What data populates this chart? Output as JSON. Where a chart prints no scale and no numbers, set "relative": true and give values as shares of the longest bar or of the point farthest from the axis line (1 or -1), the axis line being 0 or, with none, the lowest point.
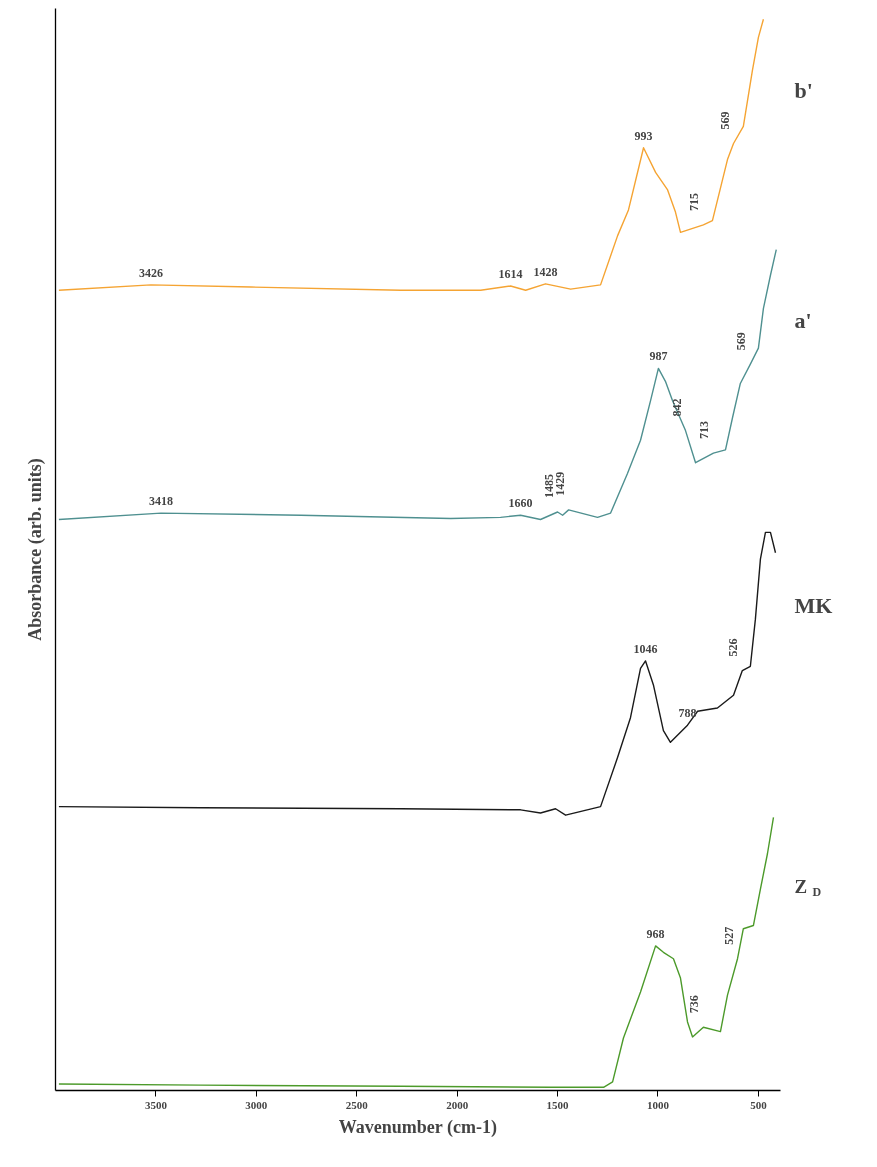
{
  "chart_data": {
    "type": "line",
    "relative": true,
    "xlabel": "Wavenumber (cm-1)",
    "ylabel": "Absorbance (arb. units)",
    "xlim": [
      4000,
      390
    ],
    "xticks": [
      3500,
      3000,
      2500,
      2000,
      1500,
      1000,
      500
    ],
    "tick_labels": "x",
    "grid": false,
    "legend": false,
    "marker": "none",
    "line_style": "solid",
    "series": [
      {
        "name": "b'",
        "color": "#f5a433",
        "x": [
          3983,
          3525,
          3027,
          2281,
          1883,
          1734,
          1659,
          1560,
          1435,
          1286,
          1201,
          1147,
          1072,
          1012,
          953,
          913,
          888,
          774,
          729,
          654,
          624,
          575,
          530,
          500,
          475
        ],
        "values": [
          0.747,
          0.752,
          0.75,
          0.747,
          0.747,
          0.751,
          0.747,
          0.753,
          0.748,
          0.752,
          0.798,
          0.822,
          0.88,
          0.857,
          0.841,
          0.82,
          0.801,
          0.808,
          0.812,
          0.869,
          0.884,
          0.9,
          0.952,
          0.983,
          1.0
        ]
      },
      {
        "name": "a'",
        "color": "#4f9090",
        "x": [
          3983,
          3475,
          2779,
          2032,
          1784,
          1684,
          1585,
          1500,
          1475,
          1445,
          1301,
          1236,
          1152,
          1087,
          1037,
          998,
          963,
          928,
          863,
          813,
          724,
          664,
          629,
          590,
          540,
          500,
          475,
          440,
          411
        ],
        "values": [
          0.533,
          0.539,
          0.537,
          0.534,
          0.535,
          0.537,
          0.533,
          0.54,
          0.537,
          0.542,
          0.535,
          0.539,
          0.576,
          0.607,
          0.644,
          0.674,
          0.662,
          0.644,
          0.616,
          0.586,
          0.595,
          0.598,
          0.628,
          0.66,
          0.678,
          0.693,
          0.73,
          0.761,
          0.785
        ]
      },
      {
        "name": "MK",
        "color": "#1a1a1a",
        "x": [
          3983,
          3276,
          2281,
          1684,
          1585,
          1510,
          1460,
          1286,
          1201,
          1137,
          1087,
          1062,
          1022,
          973,
          938,
          853,
          803,
          704,
          624,
          580,
          540,
          515,
          490,
          465,
          440,
          415
        ],
        "values": [
          0.265,
          0.264,
          0.263,
          0.262,
          0.259,
          0.263,
          0.257,
          0.265,
          0.311,
          0.348,
          0.394,
          0.401,
          0.378,
          0.336,
          0.325,
          0.341,
          0.354,
          0.357,
          0.369,
          0.392,
          0.396,
          0.44,
          0.496,
          0.521,
          0.521,
          0.502
        ]
      },
      {
        "name": "Z$_{D}$",
        "color": "#4c9a2a",
        "x": [
          3983,
          3276,
          2281,
          1535,
          1271,
          1226,
          1172,
          1087,
          1012,
          973,
          923,
          888,
          853,
          828,
          774,
          689,
          654,
          604,
          575,
          525,
          490,
          455,
          425
        ],
        "values": [
          0.006,
          0.005,
          0.004,
          0.003,
          0.003,
          0.008,
          0.049,
          0.092,
          0.135,
          0.129,
          0.123,
          0.105,
          0.064,
          0.05,
          0.059,
          0.055,
          0.089,
          0.123,
          0.151,
          0.154,
          0.188,
          0.221,
          0.255
        ]
      }
    ],
    "annotations": [
      {
        "text": "3426",
        "x": 3525,
        "y": 0.752
      },
      {
        "text": "1614",
        "x": 1734,
        "y": 0.751
      },
      {
        "text": "1428",
        "x": 1560,
        "y": 0.753
      },
      {
        "text": "993",
        "x": 1072,
        "y": 0.88
      },
      {
        "text": "715",
        "x": 774,
        "y": 0.808
      },
      {
        "text": "569",
        "x": 624,
        "y": 0.884
      },
      {
        "text": "3418",
        "x": 3475,
        "y": 0.539
      },
      {
        "text": "1660",
        "x": 1684,
        "y": 0.537
      },
      {
        "text": "1485",
        "x": 1500,
        "y": 0.54
      },
      {
        "text": "1429",
        "x": 1445,
        "y": 0.542
      },
      {
        "text": "987",
        "x": 998,
        "y": 0.674
      },
      {
        "text": "842",
        "x": 863,
        "y": 0.616
      },
      {
        "text": "713",
        "x": 724,
        "y": 0.595
      },
      {
        "text": "569",
        "x": 540,
        "y": 0.678
      },
      {
        "text": "1046",
        "x": 1062,
        "y": 0.401
      },
      {
        "text": "788",
        "x": 853,
        "y": 0.341
      },
      {
        "text": "526",
        "x": 580,
        "y": 0.392
      },
      {
        "text": "968",
        "x": 1012,
        "y": 0.135
      },
      {
        "text": "736",
        "x": 774,
        "y": 0.059
      },
      {
        "text": "527",
        "x": 604,
        "y": 0.123
      }
    ]
  }
}
